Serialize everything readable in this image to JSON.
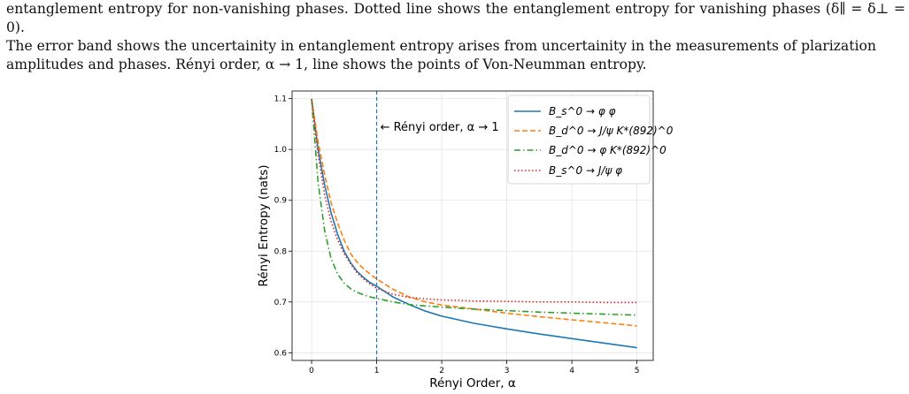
{
  "caption": {
    "lines": [
      "entanglement entropy for non-vanishing phases. Dotted line shows the entanglement entropy for vanishing phases (δ∥ = δ⊥ = 0).",
      "The error band shows the uncertainity in entanglement entropy arises from uncertainity in the measurements of plarization",
      "amplitudes and phases. Rényi order, α → 1, line shows the points of Von-Neumman entropy."
    ]
  },
  "chart_data": {
    "type": "line",
    "title": "",
    "xlabel": "Rényi Order, α",
    "ylabel": "Rényi Entropy (nats)",
    "xlim": [
      -0.3,
      5.25
    ],
    "ylim": [
      0.585,
      1.115
    ],
    "xticks": [
      0,
      1,
      2,
      3,
      4,
      5
    ],
    "yticks": [
      0.6,
      0.7,
      0.8,
      0.9,
      1.0,
      1.1
    ],
    "xtick_labels": [
      "0",
      "1",
      "2",
      "3",
      "4",
      "5"
    ],
    "ytick_labels": [
      "0.6",
      "0.7",
      "0.8",
      "0.9",
      "1.0",
      "1.1"
    ],
    "grid": true,
    "legend_position": "top-right",
    "annotation": {
      "text": "← Rényi order, α → 1",
      "x": 1
    },
    "vline": {
      "x": 1,
      "color": "#1f77b4",
      "style": "dashed"
    },
    "x": [
      0,
      0.1,
      0.2,
      0.3,
      0.4,
      0.5,
      0.6,
      0.7,
      0.8,
      0.9,
      1.0,
      1.25,
      1.5,
      1.75,
      2.0,
      2.5,
      3.0,
      3.5,
      4.0,
      4.5,
      5.0
    ],
    "series": [
      {
        "name": "B_s^0 → φ φ",
        "color": "#1f77b4",
        "style": "solid",
        "values": [
          1.099,
          1.0,
          0.93,
          0.875,
          0.833,
          0.8,
          0.777,
          0.76,
          0.748,
          0.738,
          0.731,
          0.71,
          0.695,
          0.682,
          0.672,
          0.658,
          0.647,
          0.637,
          0.628,
          0.619,
          0.61
        ]
      },
      {
        "name": "B_d^0 → J/ψ K*(892)^0",
        "color": "#ff7f0e",
        "style": "dashed",
        "values": [
          1.099,
          1.015,
          0.95,
          0.895,
          0.855,
          0.822,
          0.795,
          0.778,
          0.765,
          0.755,
          0.745,
          0.725,
          0.71,
          0.7,
          0.694,
          0.686,
          0.678,
          0.671,
          0.665,
          0.659,
          0.653
        ]
      },
      {
        "name": "B_d^0 → φ K*(892)^0",
        "color": "#2ca02c",
        "style": "dashdot",
        "values": [
          1.099,
          0.935,
          0.84,
          0.785,
          0.755,
          0.737,
          0.726,
          0.719,
          0.714,
          0.71,
          0.707,
          0.7,
          0.695,
          0.692,
          0.69,
          0.686,
          0.683,
          0.68,
          0.678,
          0.676,
          0.674
        ]
      },
      {
        "name": "B_s^0 → J/ψ φ",
        "color": "#d62728",
        "style": "dotted",
        "values": [
          1.099,
          0.99,
          0.91,
          0.858,
          0.822,
          0.795,
          0.775,
          0.757,
          0.745,
          0.735,
          0.727,
          0.715,
          0.709,
          0.706,
          0.704,
          0.702,
          0.701,
          0.7,
          0.7,
          0.699,
          0.699
        ]
      }
    ]
  }
}
